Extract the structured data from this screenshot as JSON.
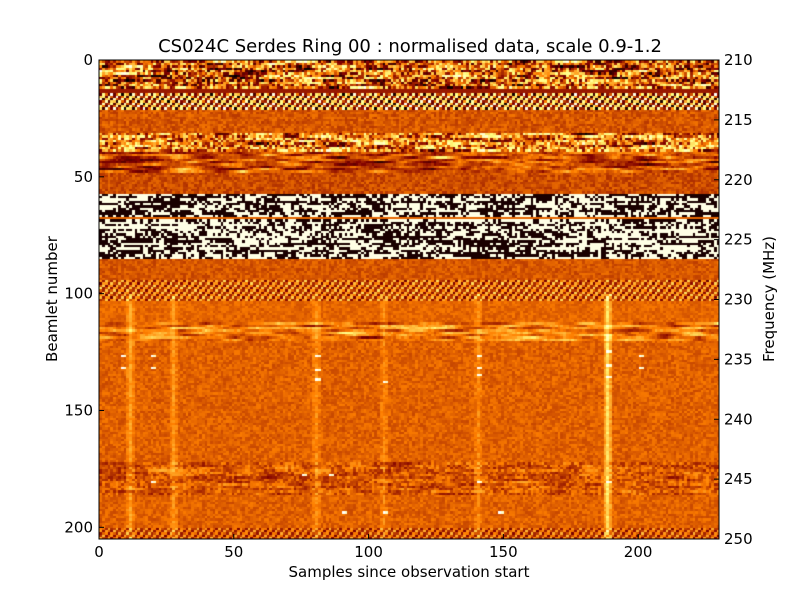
{
  "chart_data": {
    "type": "heatmap",
    "title": "CS024C Serdes Ring 00 : normalised data, scale 0.9-1.2",
    "xlabel": "Samples since observation start",
    "ylabel": "Beamlet number",
    "y2label": "Frequency (MHz)",
    "xlim": [
      0,
      230
    ],
    "ylim": [
      205,
      0
    ],
    "y2lim": [
      250,
      210
    ],
    "color_scale": [
      0.9,
      1.2
    ],
    "colormap": "afmhot",
    "xticks": [
      0,
      50,
      100,
      150,
      200
    ],
    "yticks": [
      0,
      50,
      100,
      150,
      200
    ],
    "y2ticks": [
      210,
      215,
      220,
      225,
      230,
      235,
      240,
      245,
      250
    ],
    "bands": [
      {
        "y0": 0,
        "y1": 12,
        "kind": "noisy",
        "base": 0.45,
        "amp": 0.55
      },
      {
        "y0": 12,
        "y1": 14,
        "kind": "flat",
        "base": 0.3,
        "amp": 0
      },
      {
        "y0": 14,
        "y1": 21,
        "kind": "stripes",
        "base": 0.5,
        "amp": 0.5
      },
      {
        "y0": 21,
        "y1": 31,
        "kind": "flat",
        "base": 0.42,
        "amp": 0.06
      },
      {
        "y0": 31,
        "y1": 39,
        "kind": "noisy",
        "base": 0.5,
        "amp": 0.5
      },
      {
        "y0": 39,
        "y1": 48,
        "kind": "blobs",
        "base": 0.4,
        "amp": 0.35
      },
      {
        "y0": 48,
        "y1": 57,
        "kind": "flat",
        "base": 0.4,
        "amp": 0.06
      },
      {
        "y0": 57,
        "y1": 67,
        "kind": "saturated",
        "base": 0.5,
        "amp": 0.5
      },
      {
        "y0": 67,
        "y1": 68,
        "kind": "flat",
        "base": 0.45,
        "amp": 0
      },
      {
        "y0": 68,
        "y1": 85,
        "kind": "saturated",
        "base": 0.5,
        "amp": 0.5
      },
      {
        "y0": 85,
        "y1": 94,
        "kind": "flat",
        "base": 0.42,
        "amp": 0.05
      },
      {
        "y0": 94,
        "y1": 103,
        "kind": "stripes",
        "base": 0.45,
        "amp": 0.25
      },
      {
        "y0": 103,
        "y1": 112,
        "kind": "flat",
        "base": 0.45,
        "amp": 0.04
      },
      {
        "y0": 112,
        "y1": 120,
        "kind": "blobs",
        "base": 0.5,
        "amp": 0.3
      },
      {
        "y0": 120,
        "y1": 172,
        "kind": "flat",
        "base": 0.44,
        "amp": 0.05
      },
      {
        "y0": 172,
        "y1": 186,
        "kind": "noisy",
        "base": 0.42,
        "amp": 0.18
      },
      {
        "y0": 186,
        "y1": 200,
        "kind": "flat",
        "base": 0.44,
        "amp": 0.05
      },
      {
        "y0": 200,
        "y1": 205,
        "kind": "stripes",
        "base": 0.42,
        "amp": 0.2
      }
    ],
    "vertical_streaks": [
      {
        "x": 11,
        "strength": 0.12
      },
      {
        "x": 27,
        "strength": 0.1
      },
      {
        "x": 80,
        "strength": 0.08
      },
      {
        "x": 105,
        "strength": 0.08
      },
      {
        "x": 140,
        "strength": 0.08
      },
      {
        "x": 188,
        "strength": 0.25
      }
    ],
    "hot_spots": [
      {
        "x": 8,
        "y": 126
      },
      {
        "x": 8,
        "y": 131
      },
      {
        "x": 19,
        "y": 126
      },
      {
        "x": 19,
        "y": 131
      },
      {
        "x": 80,
        "y": 126
      },
      {
        "x": 80,
        "y": 132
      },
      {
        "x": 80,
        "y": 136
      },
      {
        "x": 105,
        "y": 137
      },
      {
        "x": 140,
        "y": 126
      },
      {
        "x": 140,
        "y": 131
      },
      {
        "x": 140,
        "y": 134
      },
      {
        "x": 188,
        "y": 124
      },
      {
        "x": 188,
        "y": 130
      },
      {
        "x": 188,
        "y": 135
      },
      {
        "x": 200,
        "y": 126
      },
      {
        "x": 200,
        "y": 131
      },
      {
        "x": 188,
        "y": 180
      },
      {
        "x": 140,
        "y": 180
      },
      {
        "x": 19,
        "y": 180
      },
      {
        "x": 75,
        "y": 177
      },
      {
        "x": 85,
        "y": 177
      },
      {
        "x": 90,
        "y": 193
      },
      {
        "x": 105,
        "y": 193
      },
      {
        "x": 148,
        "y": 193
      }
    ]
  }
}
